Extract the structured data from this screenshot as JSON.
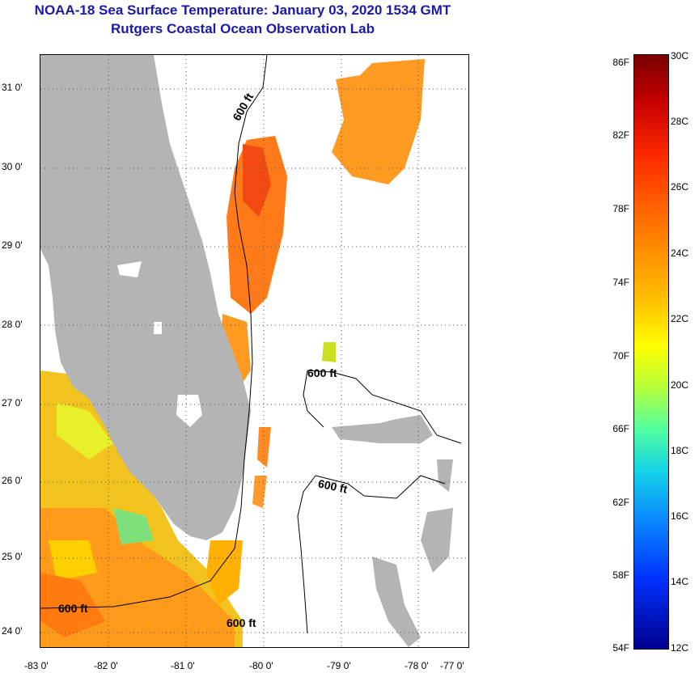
{
  "header": {
    "title": "NOAA-18 Sea Surface Temperature:  January 03, 2020 1534 GMT",
    "subtitle": "Rutgers Coastal Ocean Observation Lab"
  },
  "map": {
    "lat_labels": [
      "31 0'",
      "30 0'",
      "29 0'",
      "28 0'",
      "27 0'",
      "26 0'",
      "25 0'",
      "24 0'"
    ],
    "lon_labels": [
      "-83 0'",
      "-82 0'",
      "-81 0'",
      "-80 0'",
      "-79 0'",
      "-78 0'",
      "-77 0'"
    ],
    "contour_labels": [
      "600 ft",
      "600 ft",
      "600 ft",
      "600 ft",
      "600 ft"
    ],
    "colors": {
      "land": "#b4b4b4",
      "water_no_data": "#ffffff",
      "grid": "#555555"
    }
  },
  "colorbar": {
    "fahrenheit": [
      "86F",
      "82F",
      "78F",
      "74F",
      "70F",
      "66F",
      "62F",
      "58F",
      "54F"
    ],
    "celsius": [
      "30C",
      "28C",
      "26C",
      "24C",
      "22C",
      "20C",
      "18C",
      "16C",
      "14C",
      "12C"
    ]
  }
}
